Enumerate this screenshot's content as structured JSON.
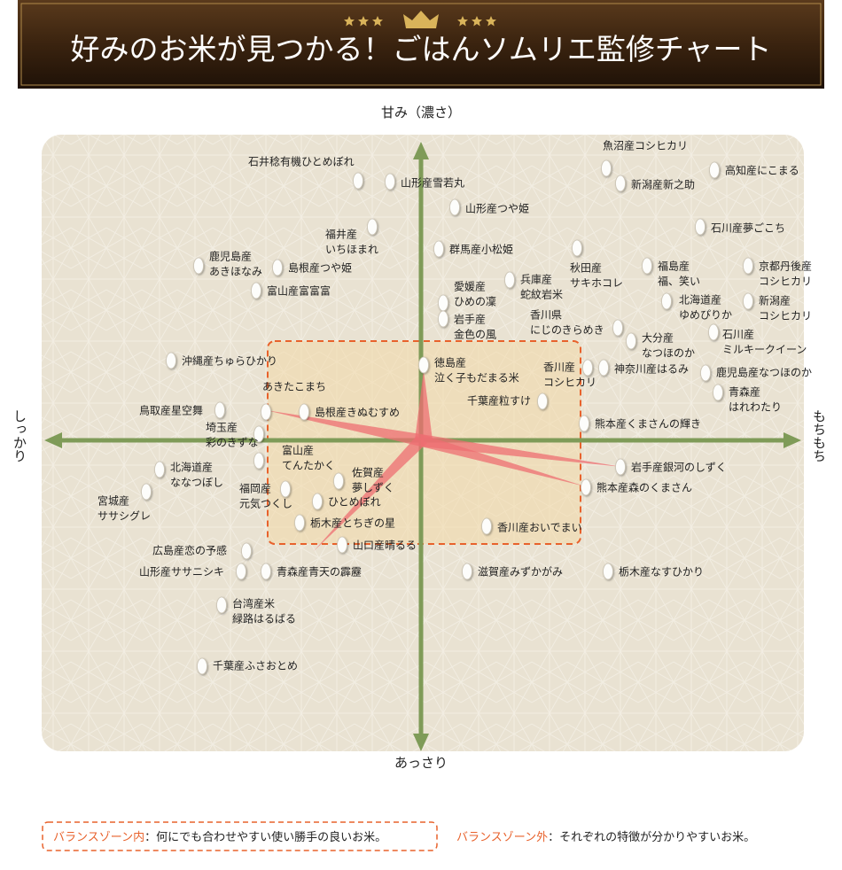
{
  "header": {
    "title": "好みのお米が見つかる！ごはんソムリエ監修チャート"
  },
  "axes": {
    "top": "甘み（濃さ）",
    "bottom": "あっさり",
    "left": "しっかり",
    "right": "もちもち"
  },
  "nodes": [
    {
      "lines": [
        "石井稔有機ひとめぼれ"
      ]
    },
    {
      "lines": [
        "山形産雪若丸"
      ]
    },
    {
      "lines": [
        "山形産つや姫"
      ]
    },
    {
      "lines": [
        "福井産",
        "いちほまれ"
      ]
    },
    {
      "lines": [
        "群馬産小松姫"
      ]
    },
    {
      "lines": [
        "魚沼産コシヒカリ"
      ]
    },
    {
      "lines": [
        "高知産にこまる"
      ]
    },
    {
      "lines": [
        "新潟産新之助"
      ]
    },
    {
      "lines": [
        "石川産夢ごこち"
      ]
    },
    {
      "lines": [
        "鹿児島産",
        "あきほなみ"
      ]
    },
    {
      "lines": [
        "島根産つや姫"
      ]
    },
    {
      "lines": [
        "富山産富富富"
      ]
    },
    {
      "lines": [
        "秋田産",
        "サキホコレ"
      ]
    },
    {
      "lines": [
        "兵庫産",
        "蛇紋岩米"
      ]
    },
    {
      "lines": [
        "愛媛産",
        "ひめの凜"
      ]
    },
    {
      "lines": [
        "岩手産",
        "金色の風"
      ]
    },
    {
      "lines": [
        "香川県",
        "にじのきらめき"
      ]
    },
    {
      "lines": [
        "福島産",
        "福、笑い"
      ]
    },
    {
      "lines": [
        "京都丹後産",
        "コシヒカリ"
      ]
    },
    {
      "lines": [
        "北海道産",
        "ゆめぴりか"
      ]
    },
    {
      "lines": [
        "新潟産",
        "コシヒカリ"
      ]
    },
    {
      "lines": [
        "大分産",
        "なつほのか"
      ]
    },
    {
      "lines": [
        "石川産",
        "ミルキークイーン"
      ]
    },
    {
      "lines": [
        "沖縄産ちゅらひかり"
      ]
    },
    {
      "lines": [
        "徳島産",
        "泣く子もだまる米"
      ]
    },
    {
      "lines": [
        "香川産",
        "コシヒカリ"
      ]
    },
    {
      "lines": [
        "神奈川産はるみ"
      ]
    },
    {
      "lines": [
        "鹿児島産なつほのか"
      ]
    },
    {
      "lines": [
        "青森産",
        "はれわたり"
      ]
    },
    {
      "lines": [
        "あきたこまち"
      ]
    },
    {
      "lines": [
        "島根産きぬむすめ"
      ]
    },
    {
      "lines": [
        "千葉産粒すけ"
      ]
    },
    {
      "lines": [
        "鳥取産星空舞"
      ]
    },
    {
      "lines": [
        "埼玉産",
        "彩のきずな"
      ]
    },
    {
      "lines": [
        "熊本産くまさんの輝き"
      ]
    },
    {
      "lines": [
        "北海道産",
        "ななつぼし"
      ]
    },
    {
      "lines": [
        "富山産",
        "てんたかく"
      ]
    },
    {
      "lines": [
        "佐賀産",
        "夢しずく"
      ]
    },
    {
      "lines": [
        "宮城産",
        "ササシグレ"
      ]
    },
    {
      "lines": [
        "福岡産",
        "元気つくし"
      ]
    },
    {
      "lines": [
        "ひとめぼれ"
      ]
    },
    {
      "lines": [
        "岩手産銀河のしずく"
      ]
    },
    {
      "lines": [
        "熊本産森のくまさん"
      ]
    },
    {
      "lines": [
        "栃木産とちぎの星"
      ]
    },
    {
      "lines": [
        "香川産おいでまい"
      ]
    },
    {
      "lines": [
        "山口産晴るる"
      ]
    },
    {
      "lines": [
        "広島産恋の予感"
      ]
    },
    {
      "lines": [
        "山形産ササニシキ"
      ]
    },
    {
      "lines": [
        "青森産青天の霹靂"
      ]
    },
    {
      "lines": [
        "滋賀産みずかがみ"
      ]
    },
    {
      "lines": [
        "栃木産なすひかり"
      ]
    },
    {
      "lines": [
        "台湾産米",
        "緑路はるばる"
      ]
    },
    {
      "lines": [
        "千葉産ふさおとめ"
      ]
    }
  ],
  "legend": [
    {
      "label": "バランスゾーン内",
      "description": "：何にでも合わせやすい使い勝手の良いお米。"
    },
    {
      "label": "バランスゾーン外",
      "description": "：それぞれの特徴が分かりやすいお米。"
    }
  ]
}
